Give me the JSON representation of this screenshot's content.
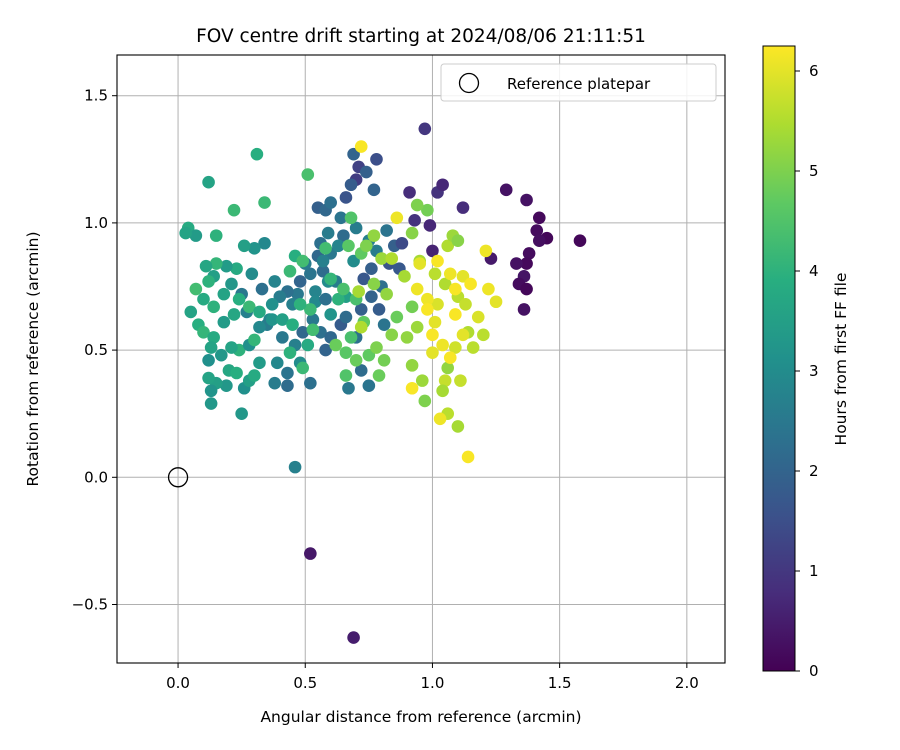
{
  "chart_data": {
    "type": "scatter",
    "title": "FOV centre drift starting at 2024/08/06 21:11:51",
    "xlabel": "Angular distance from reference (arcmin)",
    "ylabel": "Rotation from reference (arcmin)",
    "xlim": [
      -0.24,
      2.15
    ],
    "ylim": [
      -0.73,
      1.66
    ],
    "xticks": [
      0.0,
      0.5,
      1.0,
      1.5,
      2.0
    ],
    "xtick_labels": [
      "0.0",
      "0.5",
      "1.0",
      "1.5",
      "2.0"
    ],
    "yticks": [
      -0.5,
      0.0,
      0.5,
      1.0,
      1.5
    ],
    "ytick_labels": [
      "−0.5",
      "0.0",
      "0.5",
      "1.0",
      "1.5"
    ],
    "grid": true,
    "colormap": "viridis",
    "colorbar": {
      "label": "Hours from first FF file",
      "min": 0,
      "max": 6.25,
      "ticks": [
        0,
        1,
        2,
        3,
        4,
        5,
        6
      ],
      "tick_labels": [
        "0",
        "1",
        "2",
        "3",
        "4",
        "5",
        "6"
      ]
    },
    "legend": {
      "placement": "upper right",
      "entries": [
        {
          "label": "Reference platepar",
          "marker": "open-circle"
        }
      ]
    },
    "reference_point": {
      "x": 0.0,
      "y": 0.0
    },
    "points": [
      [
        1.58,
        0.93,
        0.1
      ],
      [
        1.45,
        0.94,
        0.1
      ],
      [
        1.42,
        1.02,
        0.15
      ],
      [
        1.41,
        0.97,
        0.2
      ],
      [
        1.42,
        0.93,
        0.25
      ],
      [
        1.37,
        1.09,
        0.3
      ],
      [
        1.38,
        0.88,
        0.2
      ],
      [
        1.37,
        0.84,
        0.15
      ],
      [
        1.36,
        0.79,
        0.35
      ],
      [
        1.33,
        0.84,
        0.3
      ],
      [
        1.34,
        0.76,
        0.2
      ],
      [
        1.37,
        0.74,
        0.1
      ],
      [
        1.36,
        0.66,
        0.3
      ],
      [
        1.29,
        1.13,
        0.3
      ],
      [
        1.23,
        0.86,
        0.45
      ],
      [
        1.12,
        1.06,
        0.8
      ],
      [
        1.02,
        1.12,
        0.9
      ],
      [
        1.04,
        1.15,
        0.7
      ],
      [
        0.97,
        1.37,
        1.0
      ],
      [
        0.91,
        1.12,
        0.8
      ],
      [
        0.93,
        1.01,
        0.9
      ],
      [
        0.99,
        0.99,
        0.7
      ],
      [
        1.0,
        0.89,
        0.6
      ],
      [
        0.69,
        -0.63,
        0.5
      ],
      [
        0.52,
        -0.3,
        0.4
      ],
      [
        0.71,
        1.22,
        1.2
      ],
      [
        0.7,
        1.17,
        1.1
      ],
      [
        0.46,
        0.04,
        2.7
      ],
      [
        0.74,
        1.2,
        1.9
      ],
      [
        0.77,
        1.13,
        2.0
      ],
      [
        0.78,
        1.25,
        1.5
      ],
      [
        0.69,
        1.27,
        2.0
      ],
      [
        0.68,
        1.15,
        1.8
      ],
      [
        0.66,
        1.1,
        1.6
      ],
      [
        0.55,
        1.06,
        1.9
      ],
      [
        0.58,
        1.05,
        2.1
      ],
      [
        0.6,
        1.08,
        2.3
      ],
      [
        0.64,
        1.02,
        2.4
      ],
      [
        0.65,
        0.95,
        2.2
      ],
      [
        0.59,
        0.96,
        2.6
      ],
      [
        0.56,
        0.92,
        2.3
      ],
      [
        0.55,
        0.87,
        2.1
      ],
      [
        0.6,
        0.88,
        2.5
      ],
      [
        0.57,
        0.81,
        2.2
      ],
      [
        0.52,
        0.8,
        2.4
      ],
      [
        0.5,
        0.84,
        2.6
      ],
      [
        0.48,
        0.77,
        2.0
      ],
      [
        0.47,
        0.72,
        2.5
      ],
      [
        0.45,
        0.68,
        2.7
      ],
      [
        0.43,
        0.73,
        2.3
      ],
      [
        0.4,
        0.71,
        2.6
      ],
      [
        0.38,
        0.77,
        2.8
      ],
      [
        0.37,
        0.68,
        3.1
      ],
      [
        0.36,
        0.62,
        2.9
      ],
      [
        0.33,
        0.74,
        2.3
      ],
      [
        0.34,
        0.92,
        2.9
      ],
      [
        0.3,
        0.9,
        3.2
      ],
      [
        0.35,
        0.6,
        2.6
      ],
      [
        0.32,
        0.59,
        2.9
      ],
      [
        0.29,
        0.8,
        3.0
      ],
      [
        0.27,
        0.65,
        2.7
      ],
      [
        0.25,
        0.72,
        2.5
      ],
      [
        0.43,
        0.36,
        2.2
      ],
      [
        0.43,
        0.41,
        2.4
      ],
      [
        0.39,
        0.45,
        2.9
      ],
      [
        0.38,
        0.37,
        2.6
      ],
      [
        0.52,
        0.37,
        2.3
      ],
      [
        0.48,
        0.45,
        3.0
      ],
      [
        0.46,
        0.52,
        2.7
      ],
      [
        0.49,
        0.57,
        2.1
      ],
      [
        0.41,
        0.55,
        2.5
      ],
      [
        0.53,
        0.62,
        2.5
      ],
      [
        0.56,
        0.57,
        2.3
      ],
      [
        0.58,
        0.5,
        2.0
      ],
      [
        0.6,
        0.55,
        2.1
      ],
      [
        0.64,
        0.6,
        1.8
      ],
      [
        0.66,
        0.63,
        2.2
      ],
      [
        0.7,
        0.55,
        2.3
      ],
      [
        0.72,
        0.66,
        1.9
      ],
      [
        0.73,
        0.78,
        1.7
      ],
      [
        0.76,
        0.82,
        1.9
      ],
      [
        0.76,
        0.71,
        2.0
      ],
      [
        0.79,
        0.66,
        1.8
      ],
      [
        0.81,
        0.6,
        2.4
      ],
      [
        0.8,
        0.75,
        2.3
      ],
      [
        0.83,
        0.84,
        1.6
      ],
      [
        0.85,
        0.91,
        1.9
      ],
      [
        0.88,
        0.92,
        1.4
      ],
      [
        0.87,
        0.82,
        1.7
      ],
      [
        0.72,
        0.42,
        2.2
      ],
      [
        0.75,
        0.36,
        2.4
      ],
      [
        0.67,
        0.35,
        2.5
      ],
      [
        0.62,
        0.77,
        2.6
      ],
      [
        0.54,
        0.73,
        2.8
      ],
      [
        0.57,
        0.85,
        2.7
      ],
      [
        0.63,
        0.91,
        2.8
      ],
      [
        0.7,
        0.98,
        2.6
      ],
      [
        0.75,
        0.93,
        2.7
      ],
      [
        0.78,
        0.89,
        2.6
      ],
      [
        0.82,
        0.97,
        2.4
      ],
      [
        0.54,
        0.69,
        2.9
      ],
      [
        0.58,
        0.7,
        2.3
      ],
      [
        0.6,
        0.64,
        3.2
      ],
      [
        0.66,
        0.71,
        3.5
      ],
      [
        0.59,
        0.77,
        3.0
      ],
      [
        0.69,
        0.85,
        3.0
      ],
      [
        0.12,
        1.16,
        3.6
      ],
      [
        0.31,
        1.27,
        3.9
      ],
      [
        0.34,
        1.08,
        4.2
      ],
      [
        0.22,
        1.05,
        4.2
      ],
      [
        0.04,
        0.98,
        3.8
      ],
      [
        0.07,
        0.95,
        3.4
      ],
      [
        0.03,
        0.96,
        3.6
      ],
      [
        0.15,
        0.95,
        4.0
      ],
      [
        0.26,
        0.91,
        3.5
      ],
      [
        0.23,
        0.82,
        3.8
      ],
      [
        0.19,
        0.83,
        3.4
      ],
      [
        0.15,
        0.84,
        4.1
      ],
      [
        0.11,
        0.83,
        3.7
      ],
      [
        0.14,
        0.79,
        3.5
      ],
      [
        0.12,
        0.77,
        4.0
      ],
      [
        0.18,
        0.72,
        3.6
      ],
      [
        0.21,
        0.76,
        3.3
      ],
      [
        0.24,
        0.7,
        3.9
      ],
      [
        0.28,
        0.67,
        4.2
      ],
      [
        0.22,
        0.64,
        3.7
      ],
      [
        0.18,
        0.61,
        3.4
      ],
      [
        0.14,
        0.67,
        4.0
      ],
      [
        0.1,
        0.7,
        3.8
      ],
      [
        0.07,
        0.74,
        4.3
      ],
      [
        0.05,
        0.65,
        3.6
      ],
      [
        0.08,
        0.6,
        3.9
      ],
      [
        0.1,
        0.57,
        4.1
      ],
      [
        0.14,
        0.55,
        3.8
      ],
      [
        0.13,
        0.51,
        3.6
      ],
      [
        0.17,
        0.48,
        3.3
      ],
      [
        0.12,
        0.46,
        3.1
      ],
      [
        0.2,
        0.42,
        3.7
      ],
      [
        0.23,
        0.41,
        3.9
      ],
      [
        0.19,
        0.36,
        3.3
      ],
      [
        0.15,
        0.37,
        3.5
      ],
      [
        0.13,
        0.34,
        3.2
      ],
      [
        0.13,
        0.29,
        3.3
      ],
      [
        0.12,
        0.39,
        3.6
      ],
      [
        0.26,
        0.35,
        3.1
      ],
      [
        0.28,
        0.38,
        3.5
      ],
      [
        0.3,
        0.4,
        3.8
      ],
      [
        0.25,
        0.25,
        3.3
      ],
      [
        0.24,
        0.5,
        4.0
      ],
      [
        0.21,
        0.51,
        3.6
      ],
      [
        0.28,
        0.52,
        3.1
      ],
      [
        0.32,
        0.45,
        3.4
      ],
      [
        0.3,
        0.54,
        4.1
      ],
      [
        0.32,
        0.65,
        3.8
      ],
      [
        0.37,
        0.62,
        3.2
      ],
      [
        0.41,
        0.62,
        3.5
      ],
      [
        0.45,
        0.6,
        3.9
      ],
      [
        0.44,
        0.49,
        4.0
      ],
      [
        0.49,
        0.43,
        4.2
      ],
      [
        0.51,
        0.52,
        3.8
      ],
      [
        0.53,
        0.58,
        4.3
      ],
      [
        0.52,
        0.66,
        4.2
      ],
      [
        0.48,
        0.68,
        4.0
      ],
      [
        0.44,
        0.81,
        4.2
      ],
      [
        0.46,
        0.87,
        3.9
      ],
      [
        0.49,
        0.85,
        4.3
      ],
      [
        0.51,
        1.19,
        4.4
      ],
      [
        0.58,
        0.9,
        4.3
      ],
      [
        0.6,
        0.78,
        4.1
      ],
      [
        0.63,
        0.7,
        4.0
      ],
      [
        0.65,
        0.74,
        4.4
      ],
      [
        0.7,
        0.7,
        4.4
      ],
      [
        0.67,
        0.91,
        4.6
      ],
      [
        0.68,
        1.02,
        4.5
      ],
      [
        0.72,
        0.88,
        4.7
      ],
      [
        0.73,
        0.61,
        4.7
      ],
      [
        0.68,
        0.55,
        4.4
      ],
      [
        0.66,
        0.49,
        4.6
      ],
      [
        0.62,
        0.52,
        4.8
      ],
      [
        0.66,
        0.4,
        4.5
      ],
      [
        0.7,
        0.46,
        4.8
      ],
      [
        0.75,
        0.48,
        4.7
      ],
      [
        0.79,
        0.4,
        4.8
      ],
      [
        0.78,
        0.51,
        5.0
      ],
      [
        0.81,
        0.46,
        4.9
      ],
      [
        0.84,
        0.56,
        5.1
      ],
      [
        0.86,
        0.63,
        4.8
      ],
      [
        0.9,
        0.55,
        5.2
      ],
      [
        0.92,
        0.67,
        4.9
      ],
      [
        0.94,
        0.59,
        5.3
      ],
      [
        0.92,
        0.44,
        5.2
      ],
      [
        0.96,
        0.38,
        5.3
      ],
      [
        0.97,
        0.3,
        5.0
      ],
      [
        0.92,
        0.96,
        5.1
      ],
      [
        0.98,
        1.05,
        4.9
      ],
      [
        0.94,
        1.07,
        5.0
      ],
      [
        0.77,
        0.95,
        5.2
      ],
      [
        0.74,
        0.91,
        5.0
      ],
      [
        0.8,
        0.86,
        5.3
      ],
      [
        0.77,
        0.76,
        5.1
      ],
      [
        0.71,
        0.73,
        5.4
      ],
      [
        0.72,
        0.59,
        5.5
      ],
      [
        0.82,
        0.72,
        5.2
      ],
      [
        0.89,
        0.79,
        5.4
      ],
      [
        0.84,
        0.86,
        5.5
      ],
      [
        0.95,
        0.85,
        5.4
      ],
      [
        1.01,
        0.8,
        5.6
      ],
      [
        1.05,
        0.76,
        5.5
      ],
      [
        1.06,
        0.91,
        5.5
      ],
      [
        1.08,
        0.95,
        5.3
      ],
      [
        1.1,
        0.93,
        5.1
      ],
      [
        1.1,
        0.71,
        5.6
      ],
      [
        1.13,
        0.68,
        5.7
      ],
      [
        1.14,
        0.57,
        5.5
      ],
      [
        1.16,
        0.51,
        5.6
      ],
      [
        1.09,
        0.51,
        5.8
      ],
      [
        1.05,
        0.38,
        5.7
      ],
      [
        1.06,
        0.43,
        5.2
      ],
      [
        1.04,
        0.34,
        5.4
      ],
      [
        1.06,
        0.25,
        5.6
      ],
      [
        1.1,
        0.2,
        5.4
      ],
      [
        1.11,
        0.38,
        5.7
      ],
      [
        1.18,
        0.63,
        5.9
      ],
      [
        1.2,
        0.56,
        5.6
      ],
      [
        1.25,
        0.69,
        6.0
      ],
      [
        1.21,
        0.89,
        6.1
      ],
      [
        1.02,
        0.68,
        5.9
      ],
      [
        1.01,
        0.61,
        6.0
      ],
      [
        0.98,
        0.7,
        6.1
      ],
      [
        1.0,
        0.56,
        6.2
      ],
      [
        1.04,
        0.52,
        6.1
      ],
      [
        1.0,
        0.49,
        6.0
      ],
      [
        0.92,
        0.35,
        6.2
      ],
      [
        1.03,
        0.23,
        6.1
      ],
      [
        1.14,
        0.08,
        6.2
      ],
      [
        0.72,
        1.3,
        6.2
      ],
      [
        0.86,
        1.02,
        6.1
      ],
      [
        0.95,
        0.84,
        6.0
      ],
      [
        1.02,
        0.85,
        6.2
      ],
      [
        1.07,
        0.8,
        6.1
      ],
      [
        1.12,
        0.79,
        6.0
      ],
      [
        1.09,
        0.74,
        6.2
      ],
      [
        1.15,
        0.76,
        6.2
      ],
      [
        1.22,
        0.74,
        6.1
      ],
      [
        1.09,
        0.64,
        6.2
      ],
      [
        1.12,
        0.56,
        6.0
      ],
      [
        1.07,
        0.47,
        6.2
      ],
      [
        0.94,
        0.74,
        6.1
      ],
      [
        0.98,
        0.66,
        6.2
      ]
    ]
  }
}
